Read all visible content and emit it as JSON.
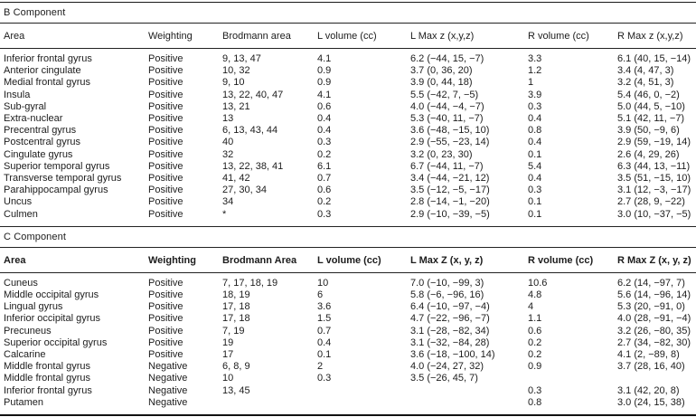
{
  "table": {
    "sections": [
      {
        "title": "B Component",
        "headers": [
          "Area",
          "Weighting",
          "Brodmann area",
          "L volume (cc)",
          "L Max z (x,y,z)",
          "R volume (cc)",
          "R Max z (x,y,z)"
        ],
        "rows": [
          [
            "Inferior frontal gyrus",
            "Positive",
            "9, 13, 47",
            "4.1",
            "6.2 (−44, 15, −7)",
            "3.3",
            "6.1 (40, 15, −14)"
          ],
          [
            "Anterior cingulate",
            "Positive",
            "10, 32",
            "0.9",
            "3.7 (0, 36, 20)",
            "1.2",
            "3.4 (4, 47, 3)"
          ],
          [
            "Medial frontal gyrus",
            "Positive",
            "9, 10",
            "0.9",
            "3.9 (0, 44, 18)",
            "1",
            "3.2 (4, 51, 3)"
          ],
          [
            "Insula",
            "Positive",
            "13, 22, 40, 47",
            "4.1",
            "5.5 (−42, 7, −5)",
            "3.9",
            "5.4 (46, 0, −2)"
          ],
          [
            "Sub-gyral",
            "Positive",
            "13, 21",
            "0.6",
            "4.0 (−44, −4, −7)",
            "0.3",
            "5.0 (44, 5, −10)"
          ],
          [
            "Extra-nuclear",
            "Positive",
            "13",
            "0.4",
            "5.3 (−40, 11, −7)",
            "0.4",
            "5.1 (42, 11, −7)"
          ],
          [
            "Precentral gyrus",
            "Positive",
            "6, 13, 43, 44",
            "0.4",
            "3.6 (−48, −15, 10)",
            "0.8",
            "3.9 (50, −9, 6)"
          ],
          [
            "Postcentral gyrus",
            "Positive",
            "40",
            "0.3",
            "2.9 (−55, −23, 14)",
            "0.4",
            "2.9 (59, −19, 14)"
          ],
          [
            "Cingulate gyrus",
            "Positive",
            "32",
            "0.2",
            "3.2 (0, 23, 30)",
            "0.1",
            "2.6 (4, 29, 26)"
          ],
          [
            "Superior temporal gyrus",
            "Positive",
            "13, 22, 38, 41",
            "6.1",
            "6.7 (−44, 11, −7)",
            "5.4",
            "6.3 (44, 13, −11)"
          ],
          [
            "Transverse temporal gyrus",
            "Positive",
            "41, 42",
            "0.7",
            "3.4 (−44, −21, 12)",
            "0.4",
            "3.5 (51, −15, 10)"
          ],
          [
            "Parahippocampal gyrus",
            "Positive",
            "27, 30, 34",
            "0.6",
            "3.5 (−12, −5, −17)",
            "0.3",
            "3.1 (12, −3, −17)"
          ],
          [
            "Uncus",
            "Positive",
            "34",
            "0.2",
            "2.8 (−14, −1, −20)",
            "0.1",
            "2.7 (28, 9, −22)"
          ],
          [
            "Culmen",
            "Positive",
            "*",
            "0.3",
            "2.9 (−10, −39, −5)",
            "0.1",
            "3.0 (10, −37, −5)"
          ]
        ]
      },
      {
        "title": "C Component",
        "headers": [
          "Area",
          "Weighting",
          "Brodmann Area",
          "L volume (cc)",
          "L Max Z (x, y, z)",
          "R volume (cc)",
          "R Max Z (x, y, z)"
        ],
        "rows": [
          [
            "Cuneus",
            "Positive",
            "7, 17, 18, 19",
            "10",
            "7.0 (−10, −99, 3)",
            "10.6",
            "6.2 (14, −97, 7)"
          ],
          [
            "Middle occipital gyrus",
            "Positive",
            "18, 19",
            "6",
            "5.8 (−6, −96, 16)",
            "4.8",
            "5.6 (14, −96, 14)"
          ],
          [
            "Lingual gyrus",
            "Positive",
            "17, 18",
            "3.6",
            "6.4 (−10, −97, −4)",
            "4",
            "5.3 (20, −91, 0)"
          ],
          [
            "Inferior occipital gyrus",
            "Positive",
            "17, 18",
            "1.5",
            "4.7 (−22, −96, −7)",
            "1.1",
            "4.0 (28, −91, −4)"
          ],
          [
            "Precuneus",
            "Positive",
            "7, 19",
            "0.7",
            "3.1 (−28, −82, 34)",
            "0.6",
            "3.2 (26, −80, 35)"
          ],
          [
            "Superior occipital gyrus",
            "Positive",
            "19",
            "0.4",
            "3.1 (−32, −84, 28)",
            "0.2",
            "2.7 (34, −82, 30)"
          ],
          [
            "Calcarine",
            "Positive",
            "17",
            "0.1",
            "3.6 (−18, −100, 14)",
            "0.2",
            "4.1 (2, −89, 8)"
          ],
          [
            "Middle frontal gyrus",
            "Negative",
            "6, 8, 9",
            "2",
            "4.0 (−24, 27, 32)",
            "0.9",
            "3.7 (28, 16, 40)"
          ],
          [
            "Middle frontal gyrus",
            "Negative",
            "10",
            "0.3",
            "3.5 (−26, 45, 7)",
            "",
            ""
          ],
          [
            "Inferior frontal gyrus",
            "Negative",
            "13, 45",
            "",
            "",
            "0.3",
            "3.1 (42, 20, 8)"
          ],
          [
            "Putamen",
            "Negative",
            "",
            "",
            "",
            "0.8",
            "3.0 (24, 15, 38)"
          ]
        ]
      }
    ]
  }
}
